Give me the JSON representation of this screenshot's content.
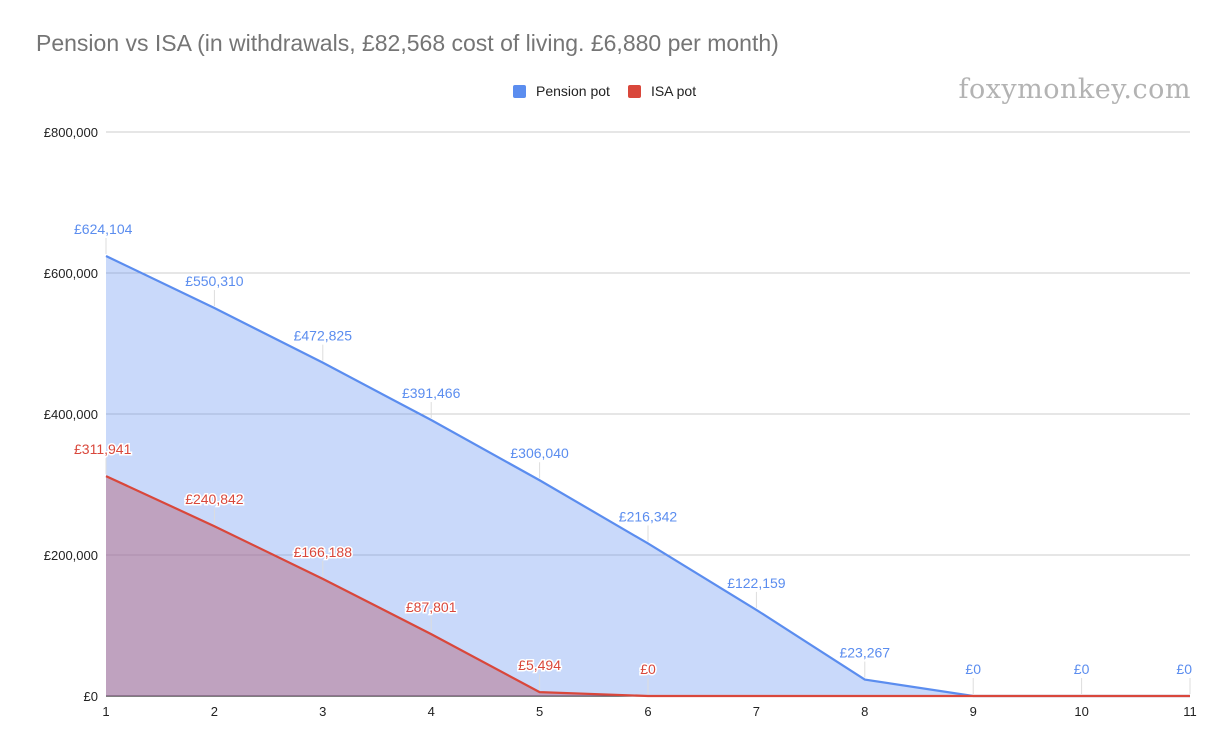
{
  "chart_data": {
    "type": "area",
    "title": "Pension vs ISA (in withdrawals, £82,568 cost of living. £6,880 per month)",
    "x": [
      1,
      2,
      3,
      4,
      5,
      6,
      7,
      8,
      9,
      10,
      11
    ],
    "ylim": [
      0,
      800000
    ],
    "yticks": [
      "£0",
      "£200,000",
      "£400,000",
      "£600,000",
      "£800,000"
    ],
    "ytick_values": [
      0,
      200000,
      400000,
      600000,
      800000
    ],
    "grid": true,
    "legend": "top",
    "series": [
      {
        "name": "Pension pot",
        "color": "#5b8def",
        "values": [
          624104,
          550310,
          472825,
          391466,
          306040,
          216342,
          122159,
          23267,
          0,
          0,
          0
        ],
        "labels": [
          "£624,104",
          "£550,310",
          "£472,825",
          "£391,466",
          "£306,040",
          "£216,342",
          "£122,159",
          "£23,267",
          "£0",
          "£0",
          "£0"
        ]
      },
      {
        "name": "ISA pot",
        "color": "#d9473b",
        "values": [
          311941,
          240842,
          166188,
          87801,
          5494,
          0,
          0,
          0,
          0,
          0,
          0
        ],
        "labels": [
          "£311,941",
          "£240,842",
          "£166,188",
          "£87,801",
          "£5,494",
          "£0",
          "",
          "",
          "",
          "",
          ""
        ]
      }
    ]
  },
  "watermark": "foxymonkey.com"
}
